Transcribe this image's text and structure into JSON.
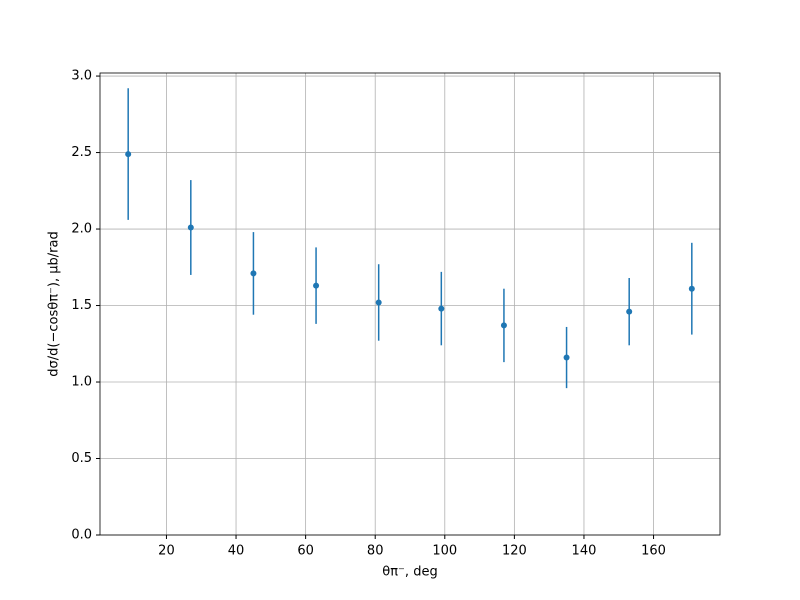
{
  "chart_data": {
    "type": "errorbar",
    "x_label": "θπ⁻, deg",
    "y_label": "dσ/d(−cosθπ⁻), μb/rad",
    "x": [
      9,
      27,
      45,
      63,
      81,
      99,
      117,
      135,
      153,
      171
    ],
    "values": [
      2.49,
      2.01,
      1.71,
      1.63,
      1.52,
      1.48,
      1.37,
      1.16,
      1.46,
      1.61
    ],
    "errors": [
      0.43,
      0.31,
      0.27,
      0.25,
      0.25,
      0.24,
      0.24,
      0.2,
      0.22,
      0.3
    ],
    "color": "#1f77b4",
    "xlim": [
      0.9,
      179.1
    ],
    "xticks": [
      20,
      40,
      60,
      80,
      100,
      120,
      140,
      160
    ],
    "ylim": [
      0,
      3.02
    ],
    "yticks": [
      {
        "value": 0,
        "label": "0.0"
      },
      {
        "value": 0.5,
        "label": "0.5"
      },
      {
        "value": 1,
        "label": "1.0"
      },
      {
        "value": 1.5,
        "label": "1.5"
      },
      {
        "value": 2,
        "label": "2.0"
      },
      {
        "value": 2.5,
        "label": "2.5"
      },
      {
        "value": 3,
        "label": "3.0"
      }
    ],
    "grid": true
  }
}
